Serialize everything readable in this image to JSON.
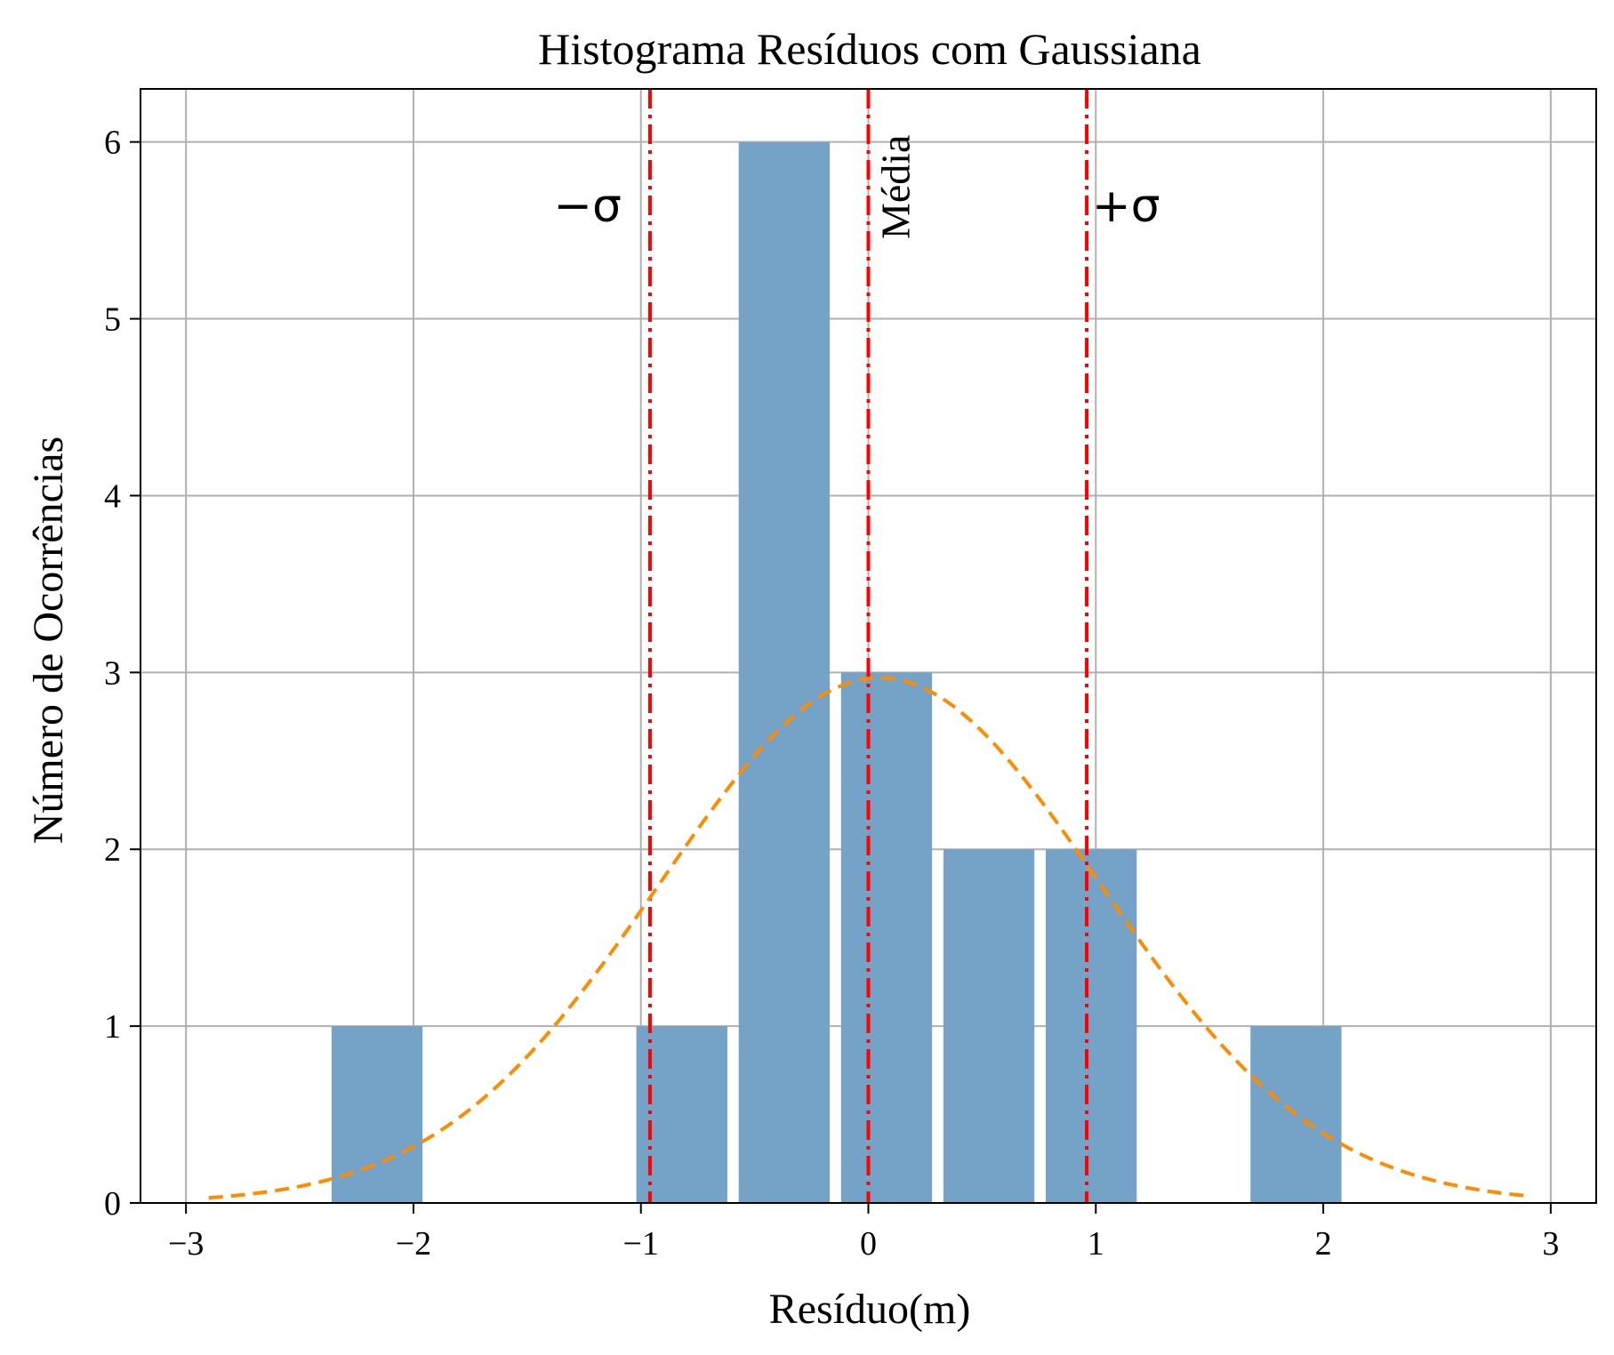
{
  "chart_data": {
    "type": "bar",
    "title": "Histograma Resíduos com Gaussiana",
    "xlabel": "Resíduo(m)",
    "ylabel": "Número de Ocorrências",
    "xlim": [
      -3.2,
      3.2
    ],
    "ylim": [
      0,
      6.3
    ],
    "xticks": [
      -3,
      -2,
      -1,
      0,
      1,
      2,
      3
    ],
    "xtick_labels": [
      "−3",
      "−2",
      "−1",
      "0",
      "1",
      "2",
      "3"
    ],
    "yticks": [
      0,
      1,
      2,
      3,
      4,
      5,
      6
    ],
    "ytick_labels": [
      "0",
      "1",
      "2",
      "3",
      "4",
      "5",
      "6"
    ],
    "grid": true,
    "bar_color": "#74a3c7",
    "bins": [
      {
        "left": -2.36,
        "right": -1.96,
        "count": 1
      },
      {
        "left": -1.02,
        "right": -0.62,
        "count": 1
      },
      {
        "left": -0.57,
        "right": -0.17,
        "count": 6
      },
      {
        "left": -0.12,
        "right": 0.28,
        "count": 3
      },
      {
        "left": 0.33,
        "right": 0.73,
        "count": 2
      },
      {
        "left": 0.78,
        "right": 1.18,
        "count": 2
      },
      {
        "left": 1.68,
        "right": 2.08,
        "count": 1
      }
    ],
    "gaussian": {
      "mean": 0.05,
      "sigma": 0.97,
      "peak": 2.97,
      "x_range": [
        -2.9,
        2.9
      ],
      "color": "#ff8c00",
      "style": "dashed"
    },
    "vlines": [
      {
        "x": -0.96,
        "label": "−σ",
        "color": "#ff0000",
        "style": "dashdot"
      },
      {
        "x": 0.0,
        "label": "Média",
        "color": "#ff0000",
        "style": "dashdot"
      },
      {
        "x": 0.96,
        "label": "+σ",
        "color": "#ff0000",
        "style": "dashdot"
      }
    ]
  }
}
